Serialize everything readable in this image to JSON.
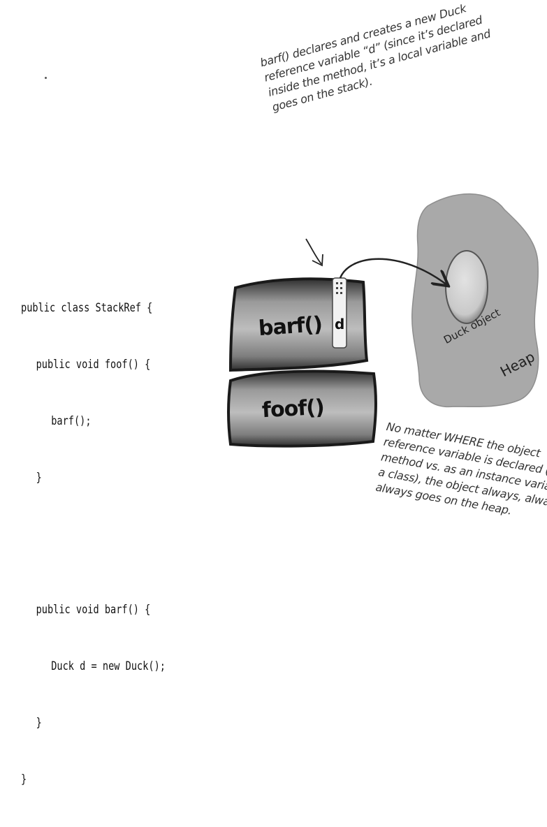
{
  "code": {
    "lines": [
      "public class StackRef {",
      "public void foof() {",
      "barf();",
      "}",
      "public void barf() {",
      "Duck d = new Duck();",
      "}",
      "}"
    ]
  },
  "annotation_top": {
    "lines": [
      "barf() declares and creates a new Duck",
      "reference variable “d” (since it’s declared",
      "inside the method, it’s a local variable and",
      "goes on the stack)."
    ]
  },
  "annotation_bottom": {
    "lines": [
      "No matter WHERE the object",
      "reference variable is declared (inside a",
      "method vs. as an instance variable of",
      "a class), the object always, always,",
      "always goes on the heap."
    ]
  },
  "stack": {
    "frames": [
      "barf()",
      "foof()"
    ],
    "reference_variable": "d"
  },
  "heap": {
    "label": "Heap",
    "object_label": "Duck object"
  },
  "colors": {
    "frame_dark": "#3a3a3a",
    "frame_light": "#a8a8a8",
    "heap_fill": "#a7a7a7",
    "object_fill": "#d3d3d3",
    "ink": "#222222"
  }
}
